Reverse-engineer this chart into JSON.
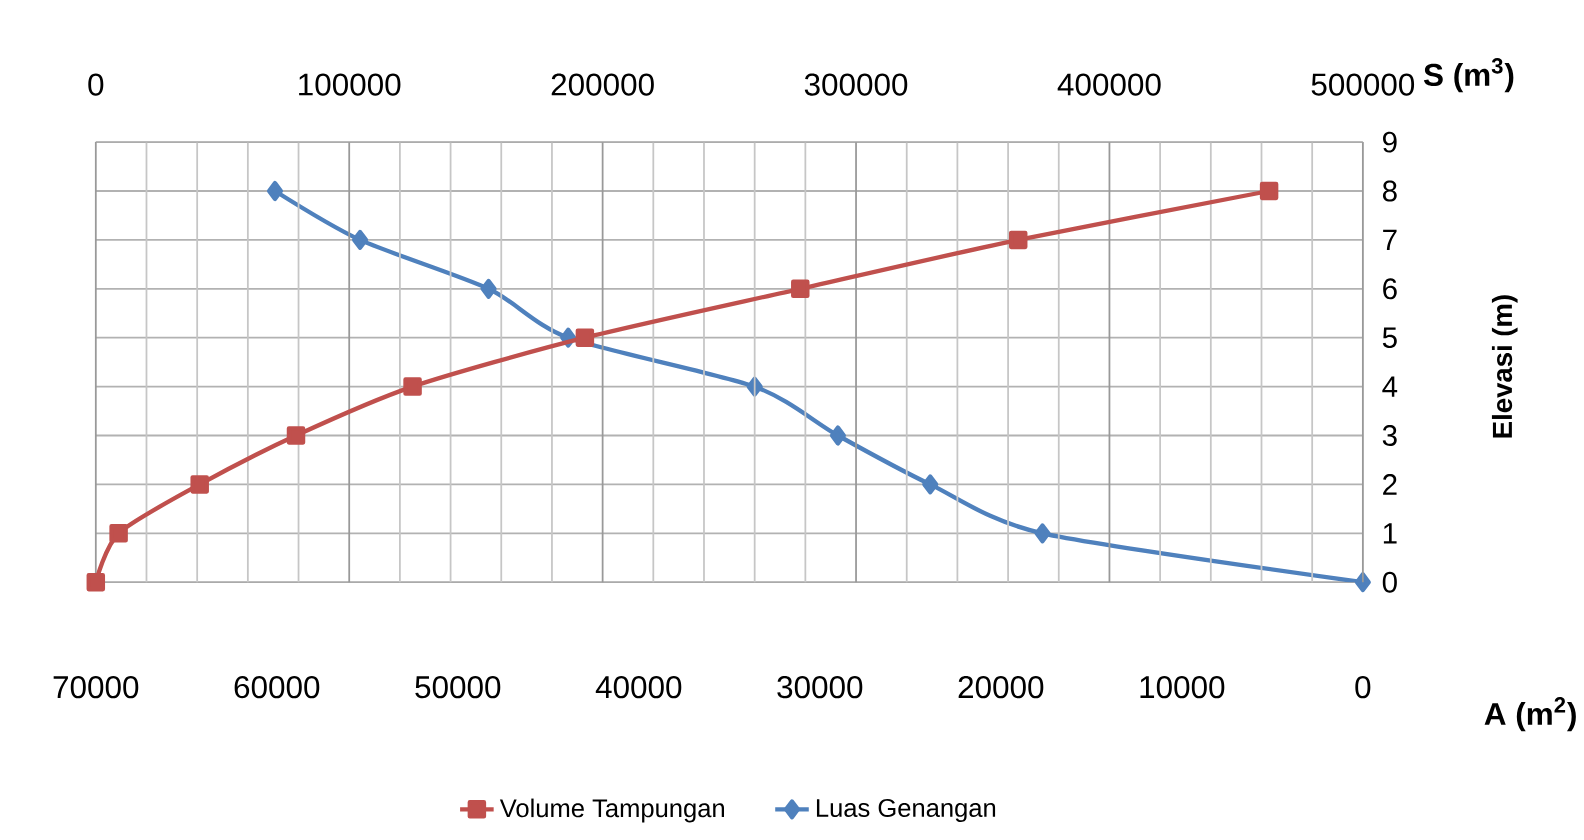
{
  "chart_data": {
    "type": "line",
    "xlabel": "A (m$^{2}$)",
    "x2label": "S (m$^{3}$)",
    "ylabel": "Elevasi (m)",
    "xlim": [
      70000,
      0
    ],
    "xticks": [
      70000,
      60000,
      50000,
      40000,
      30000,
      20000,
      10000,
      0
    ],
    "x2lim": [
      0,
      500000
    ],
    "x2ticks": [
      0,
      100000,
      200000,
      300000,
      400000,
      500000
    ],
    "ylim": [
      0,
      9
    ],
    "yticks": [
      0,
      1,
      2,
      3,
      4,
      5,
      6,
      7,
      8,
      9
    ],
    "grid": true,
    "legend": "bottom",
    "line_style": "solid",
    "series": [
      {
        "name": "Volume Tampungan",
        "color": "#c0504d",
        "axis": "x2",
        "marker": "square",
        "x": [
          0,
          9000,
          41000,
          79000,
          125000,
          193000,
          278000,
          364000,
          463000
        ],
        "values": [
          0,
          1,
          2,
          3,
          4,
          5,
          6,
          7,
          8
        ]
      },
      {
        "name": "Luas Genangan",
        "color": "#4f81bd",
        "marker": "diamond",
        "x": [
          0,
          17700,
          23900,
          29000,
          33600,
          43900,
          48300,
          55400,
          60100
        ],
        "values": [
          0,
          1,
          2,
          3,
          4,
          5,
          6,
          7,
          8
        ]
      }
    ]
  }
}
